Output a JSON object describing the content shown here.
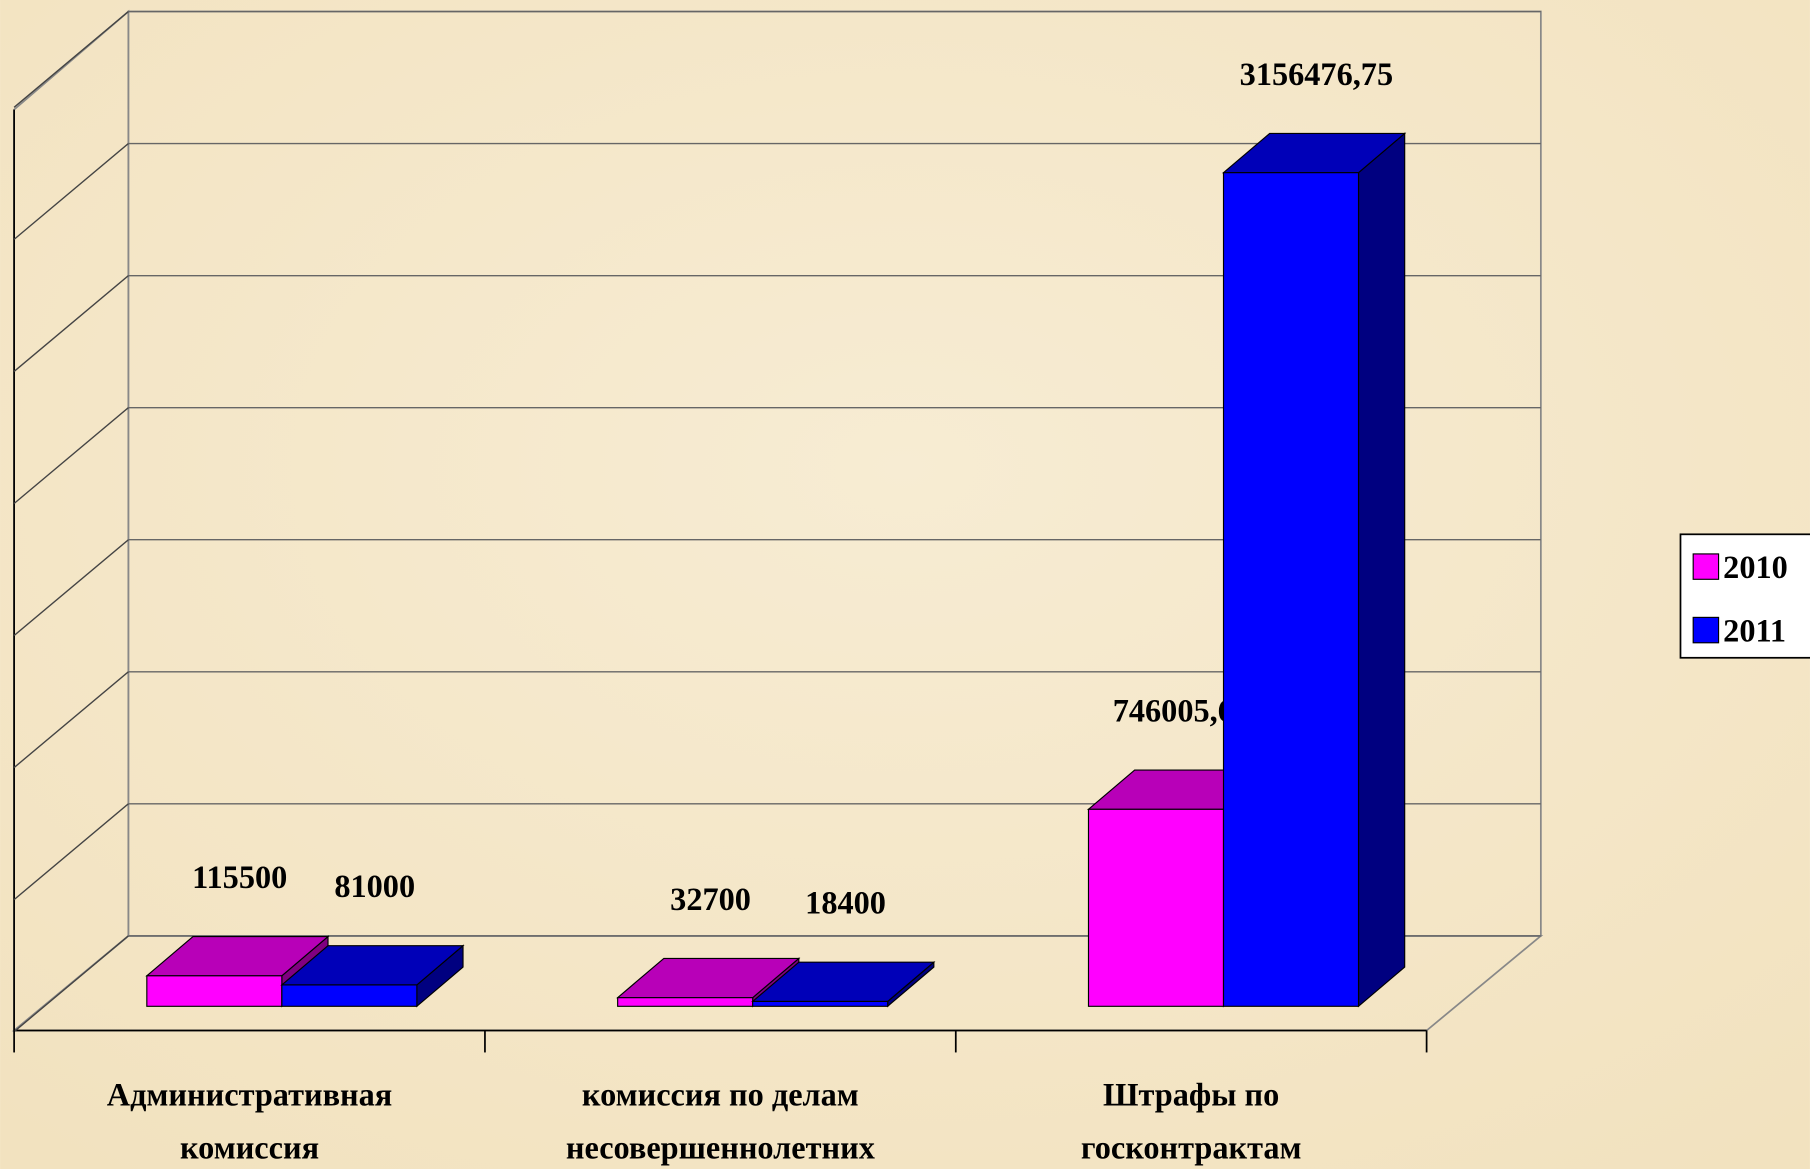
{
  "chart_data": {
    "type": "bar3d",
    "categories": [
      "Административная\nкомиссия",
      "комиссия по делам\nнесовершеннолетних",
      "Штрафы по\nгосконтрактам"
    ],
    "series": [
      {
        "name": "2010",
        "color": "#ff00ff",
        "values": [
          115500,
          32700,
          746005.64
        ],
        "value_labels": [
          "115500",
          "32700",
          "746005,64"
        ]
      },
      {
        "name": "2011",
        "color": "#0000ff",
        "values": [
          81000,
          18400,
          3156476.75
        ],
        "value_labels": [
          "81000",
          "18400",
          "3156476,75"
        ]
      }
    ],
    "ylim": [
      0,
      3500000
    ],
    "yticks": [
      0,
      500000,
      1000000,
      1500000,
      2000000,
      2500000,
      3000000,
      3500000
    ],
    "grid": true,
    "legend": "right"
  }
}
